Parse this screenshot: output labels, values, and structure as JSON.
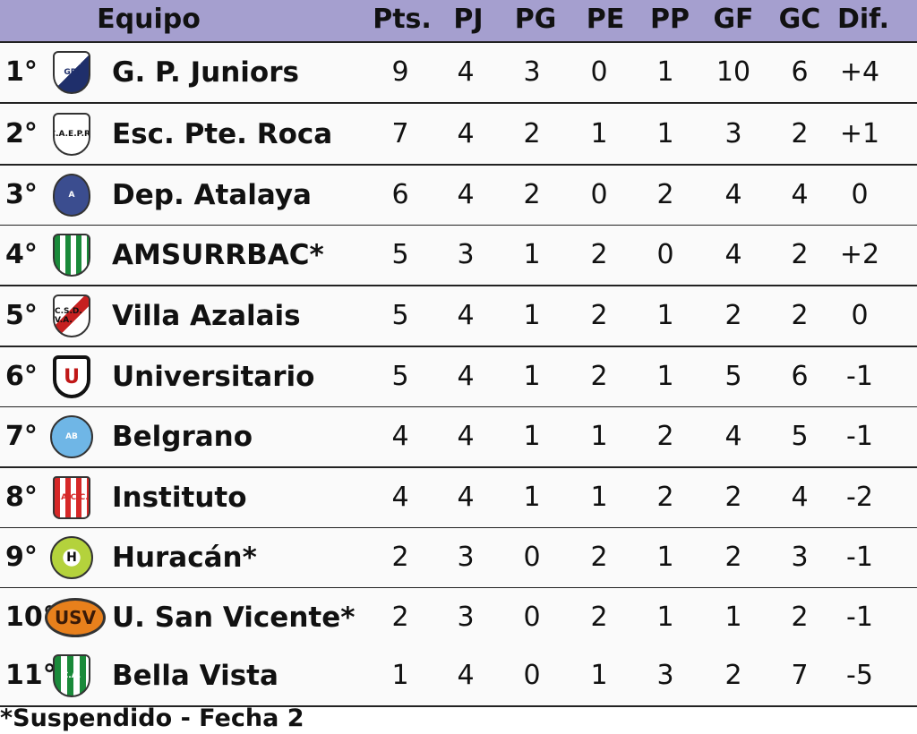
{
  "header": {
    "team": "Equipo",
    "cols": [
      "Pts.",
      "PJ",
      "PG",
      "PE",
      "PP",
      "GF",
      "GC",
      "Dif."
    ]
  },
  "rows": [
    {
      "rank": "1°",
      "team": "G. P. Juniors",
      "logo": "gpj-crest",
      "logo_text": "GPJ",
      "stats": [
        "9",
        "4",
        "3",
        "0",
        "1",
        "10",
        "6",
        "+4"
      ]
    },
    {
      "rank": "2°",
      "team": "Esc. Pte. Roca",
      "logo": "caepr-crest",
      "logo_text": "C.A.E.P.R.",
      "stats": [
        "7",
        "4",
        "2",
        "1",
        "1",
        "3",
        "2",
        "+1"
      ]
    },
    {
      "rank": "3°",
      "team": "Dep. Atalaya",
      "logo": "atalaya-crest",
      "logo_text": "A",
      "stats": [
        "6",
        "4",
        "2",
        "0",
        "2",
        "4",
        "4",
        "0"
      ]
    },
    {
      "rank": "4°",
      "team": "AMSURRBAC*",
      "logo": "amsurrbac-crest",
      "logo_text": "",
      "stats": [
        "5",
        "3",
        "1",
        "2",
        "0",
        "4",
        "2",
        "+2"
      ]
    },
    {
      "rank": "5°",
      "team": "Villa Azalais",
      "logo": "villa-azalais-crest",
      "logo_text": "C.S.D. V.A.",
      "stats": [
        "5",
        "4",
        "1",
        "2",
        "1",
        "2",
        "2",
        "0"
      ]
    },
    {
      "rank": "6°",
      "team": "Universitario",
      "logo": "universitario-crest",
      "logo_text": "U",
      "stats": [
        "5",
        "4",
        "1",
        "2",
        "1",
        "5",
        "6",
        "-1"
      ]
    },
    {
      "rank": "7°",
      "team": "Belgrano",
      "logo": "belgrano-crest",
      "logo_text": "AB",
      "stats": [
        "4",
        "4",
        "1",
        "1",
        "2",
        "4",
        "5",
        "-1"
      ]
    },
    {
      "rank": "8°",
      "team": "Instituto",
      "logo": "instituto-crest",
      "logo_text": "I.A.C.C.",
      "stats": [
        "4",
        "4",
        "1",
        "1",
        "2",
        "2",
        "4",
        "-2"
      ]
    },
    {
      "rank": "9°",
      "team": "Huracán*",
      "logo": "huracan-crest",
      "logo_text": "H",
      "stats": [
        "2",
        "3",
        "0",
        "2",
        "1",
        "2",
        "3",
        "-1"
      ]
    },
    {
      "rank": "10°",
      "team": "U. San Vicente*",
      "logo": "usv-crest",
      "logo_text": "USV",
      "stats": [
        "2",
        "3",
        "0",
        "2",
        "1",
        "1",
        "2",
        "-1"
      ]
    },
    {
      "rank": "11°",
      "team": "Bella Vista",
      "logo": "bella-vista-crest",
      "logo_text": "C.A.",
      "stats": [
        "1",
        "4",
        "0",
        "1",
        "3",
        "2",
        "7",
        "-5"
      ]
    }
  ],
  "footer": "*Suspendido - Fecha 2",
  "colors": {
    "header_bg": "#a59fcf",
    "row_bg": "#fafafa",
    "divider": "#222222"
  }
}
